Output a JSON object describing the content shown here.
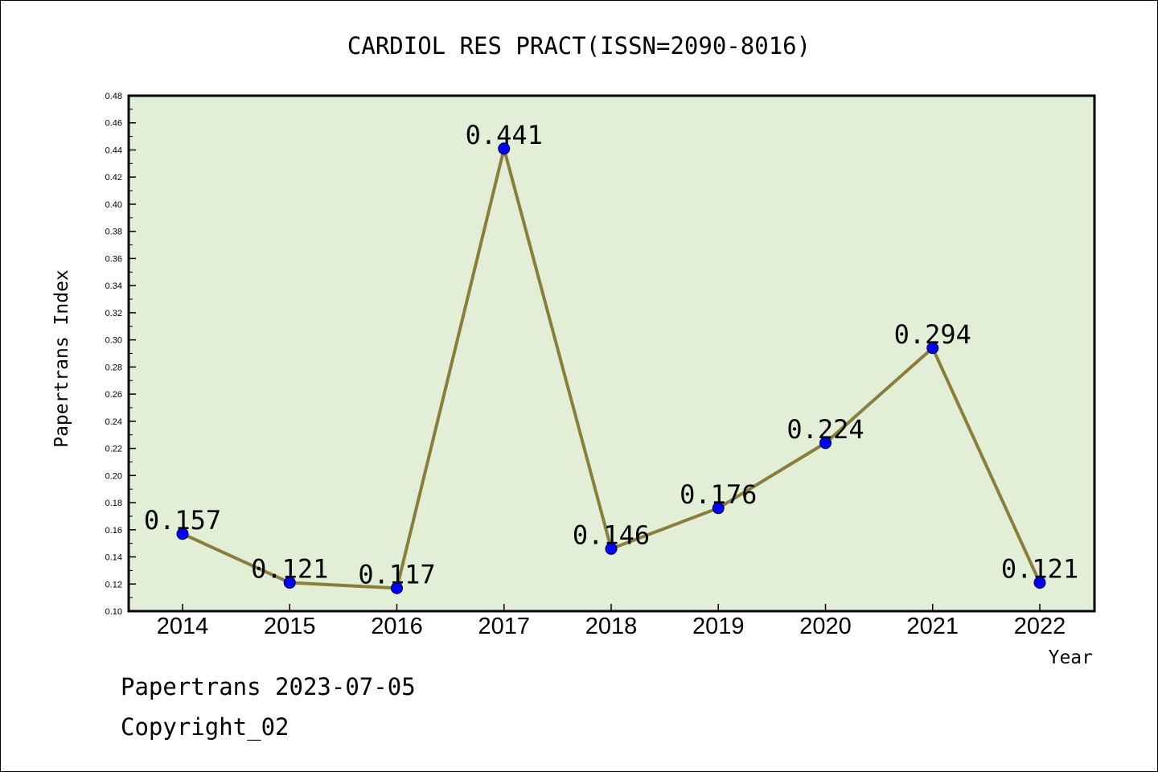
{
  "chart_data": {
    "type": "line",
    "title": "CARDIOL RES PRACT(ISSN=2090-8016)",
    "xlabel": "Year",
    "ylabel": "Papertrans Index",
    "categories": [
      "2014",
      "2015",
      "2016",
      "2017",
      "2018",
      "2019",
      "2020",
      "2021",
      "2022"
    ],
    "values": [
      0.157,
      0.121,
      0.117,
      0.441,
      0.146,
      0.176,
      0.224,
      0.294,
      0.121
    ],
    "data_labels": [
      "0.157",
      "0.121",
      "0.117",
      "0.441",
      "0.146",
      "0.176",
      "0.224",
      "0.294",
      "0.121"
    ],
    "ylim": [
      0.1,
      0.48
    ],
    "y_ticks": [
      "0.10",
      "0.12",
      "0.14",
      "0.16",
      "0.18",
      "0.20",
      "0.22",
      "0.24",
      "0.26",
      "0.28",
      "0.30",
      "0.32",
      "0.34",
      "0.36",
      "0.38",
      "0.40",
      "0.42",
      "0.44",
      "0.46",
      "0.48"
    ],
    "grid": false,
    "colors": {
      "plot_background": "#e2efd6",
      "line": "#8b7d3a",
      "marker": "#0000ff"
    }
  },
  "footer": {
    "source": "Papertrans 2023-07-05",
    "copyright": "Copyright_02"
  }
}
